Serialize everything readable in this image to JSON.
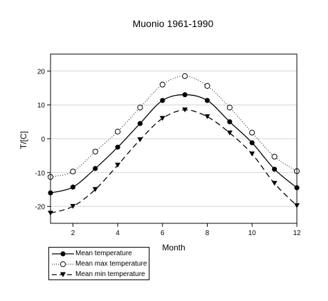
{
  "chart_data": {
    "type": "line",
    "title": "Muonio 1961-1990",
    "xlabel": "Month",
    "ylabel": "T/[C]",
    "xlim": [
      1,
      12
    ],
    "ylim": [
      -25,
      25
    ],
    "xticks": [
      2,
      4,
      6,
      8,
      10,
      12
    ],
    "yticks": [
      -20,
      -10,
      0,
      10,
      20
    ],
    "grid": true,
    "legend_position": "bottom-left",
    "x": [
      1,
      2,
      3,
      4,
      5,
      6,
      7,
      8,
      9,
      10,
      11,
      12
    ],
    "series": [
      {
        "name": "Mean temperature",
        "marker": "filled-circle",
        "line": "solid",
        "values": [
          -16,
          -14.3,
          -8.8,
          -2.5,
          4.5,
          11.3,
          13,
          11.3,
          5,
          -1.2,
          -9,
          -14.5
        ]
      },
      {
        "name": "Mean max temperature",
        "marker": "open-circle",
        "line": "dotted",
        "values": [
          -11.3,
          -9.7,
          -3.8,
          2.1,
          9.2,
          16,
          18.5,
          15.6,
          9.2,
          1.8,
          -5.3,
          -9.6
        ]
      },
      {
        "name": "Mean min temperature",
        "marker": "filled-triangle-down",
        "line": "dashed",
        "values": [
          -22,
          -20,
          -15,
          -7.8,
          -0.3,
          6,
          8.5,
          6.5,
          1.7,
          -4.5,
          -13.2,
          -19.8
        ]
      }
    ]
  }
}
